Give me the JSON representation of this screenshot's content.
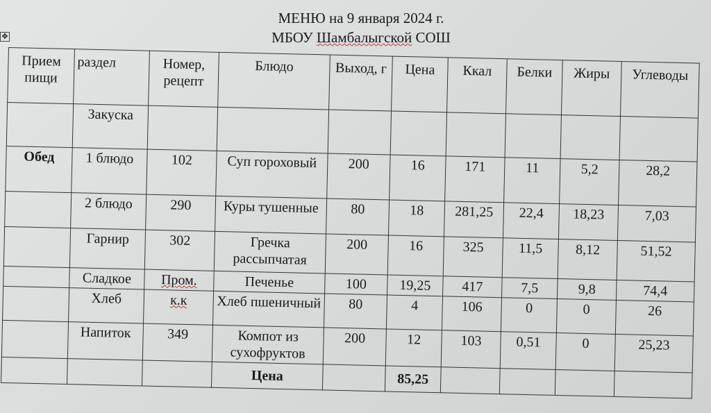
{
  "title": {
    "line1": "МЕНЮ на 9 января 2024 г.",
    "line2_prefix": "МБОУ ",
    "line2_school": "Шамбалыгской",
    "line2_suffix": " СОШ"
  },
  "table_handle_icon": "move-handle-icon",
  "headers": [
    "Прием пищи",
    "раздел",
    "Номер, рецепт",
    "Блюдо",
    "Выход, г",
    "Цена",
    "Ккал",
    "Белки",
    "Жиры",
    "Углеводы"
  ],
  "rows": [
    {
      "meal": "",
      "section": "Закуска",
      "recipe": "",
      "dish": "",
      "yield": "",
      "price": "",
      "kcal": "",
      "protein": "",
      "fat": "",
      "carbs": ""
    },
    {
      "meal": "Обед",
      "section": "1 блюдо",
      "recipe": "102",
      "dish": "Суп гороховый",
      "yield": "200",
      "price": "16",
      "kcal": "171",
      "protein": "11",
      "fat": "5,2",
      "carbs": "28,2"
    },
    {
      "meal": "",
      "section": "2 блюдо",
      "recipe": "290",
      "dish": "Куры тушенные",
      "yield": "80",
      "price": "18",
      "kcal": "281,25",
      "protein": "22,4",
      "fat": "18,23",
      "carbs": "7,03"
    },
    {
      "meal": "",
      "section": "Гарнир",
      "recipe": "302",
      "dish": "Гречка рассыпчатая",
      "yield": "200",
      "price": "16",
      "kcal": "325",
      "protein": "11,5",
      "fat": "8,12",
      "carbs": "51,52"
    },
    {
      "meal": "",
      "section": "Сладкое",
      "recipe": "Пром.",
      "dish": "Печенье",
      "yield": "100",
      "price": "19,25",
      "kcal": "417",
      "protein": "7,5",
      "fat": "9,8",
      "carbs": "74,4"
    },
    {
      "meal": "",
      "section": "Хлеб",
      "recipe": "к.к",
      "dish": "Хлеб пшеничный",
      "yield": "80",
      "price": "4",
      "kcal": "106",
      "protein": "0",
      "fat": "0",
      "carbs": "26"
    },
    {
      "meal": "",
      "section": "Напиток",
      "recipe": "349",
      "dish": "Компот из сухофруктов",
      "yield": "200",
      "price": "12",
      "kcal": "103",
      "protein": "0,51",
      "fat": "0",
      "carbs": "25,23"
    }
  ],
  "total": {
    "label": "Цена",
    "value": "85,25"
  }
}
